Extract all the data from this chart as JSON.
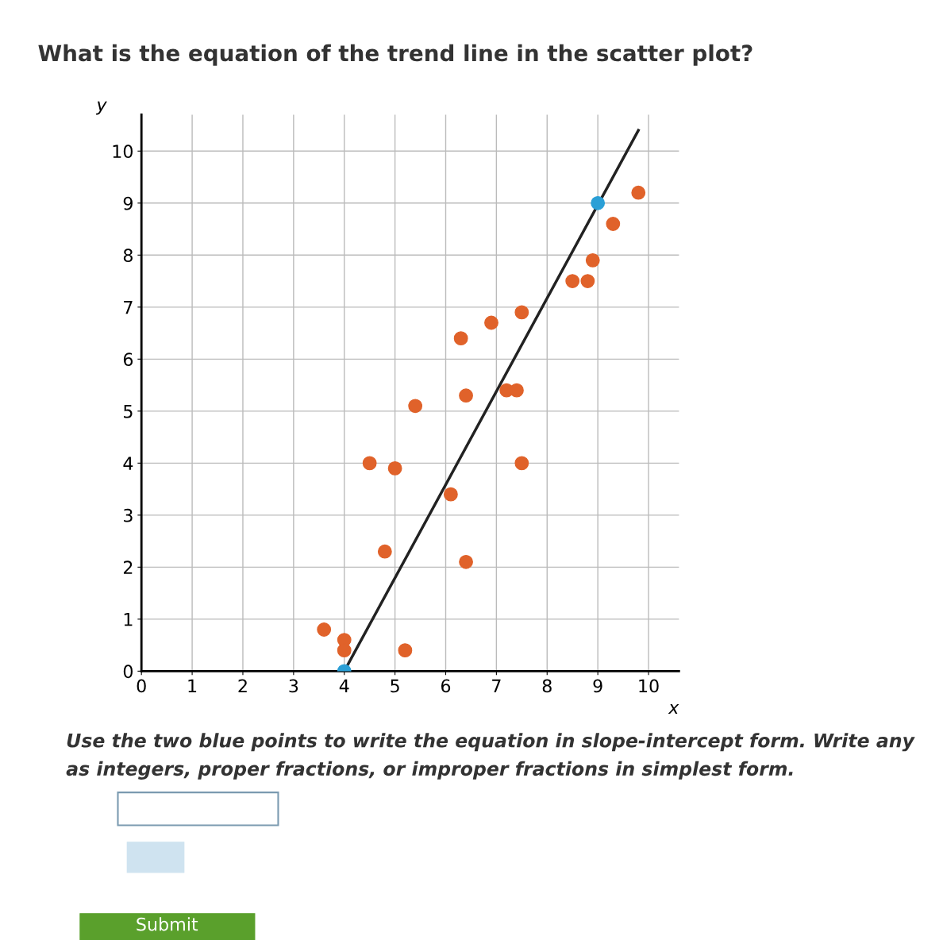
{
  "chart_data": {
    "type": "scatter",
    "title": "What is the equation of the trend line in the scatter plot?",
    "xlabel": "x",
    "ylabel": "y",
    "xlim": [
      0,
      10.6
    ],
    "ylim": [
      0,
      10.7
    ],
    "xticks": [
      0,
      1,
      2,
      3,
      4,
      5,
      6,
      7,
      8,
      9,
      10
    ],
    "yticks": [
      0,
      1,
      2,
      3,
      4,
      5,
      6,
      7,
      8,
      9,
      10
    ],
    "grid": true,
    "legend": false,
    "series": [
      {
        "type": "line",
        "color": "#222222",
        "x": [
          4,
          9.8
        ],
        "values": [
          0,
          10.4
        ],
        "line_style": "solid",
        "marker": "none"
      },
      {
        "marker": "circle",
        "color": "#e0622a",
        "x": [
          3.6,
          4.0,
          4.0,
          5.2,
          4.8,
          6.4,
          6.1,
          4.5,
          5.0,
          7.5,
          5.4,
          6.4,
          7.2,
          7.4,
          6.3,
          6.9,
          7.5,
          8.5,
          8.8,
          8.9,
          9.3,
          9.8
        ],
        "values": [
          0.8,
          0.6,
          0.4,
          0.4,
          2.3,
          2.1,
          3.4,
          4.0,
          3.9,
          4.0,
          5.1,
          5.3,
          5.4,
          5.4,
          6.4,
          6.7,
          6.9,
          7.5,
          7.5,
          7.9,
          8.6,
          9.2
        ]
      },
      {
        "marker": "circle",
        "color": "#2a9fd6",
        "x": [
          4,
          9
        ],
        "values": [
          0,
          9
        ]
      }
    ],
    "annotations": [
      "Use the two blue points to write the equation in slope-intercept form. Write any",
      "as integers, proper fractions, or improper fractions in simplest form.",
      "Submit"
    ]
  }
}
